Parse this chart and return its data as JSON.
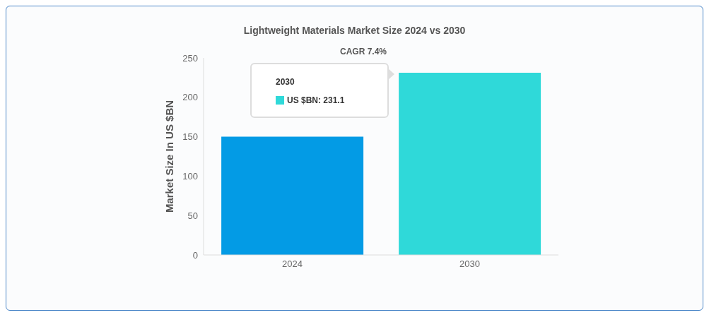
{
  "chart_data": {
    "type": "bar",
    "title": "Lightweight Materials Market Size 2024 vs 2030",
    "ylabel": "Market Size In US $BN",
    "categories": [
      "2024",
      "2030"
    ],
    "values": [
      150,
      231.1
    ],
    "colors": [
      "#039be5",
      "#2fd9d9"
    ],
    "ylim": [
      0,
      250
    ],
    "yticks": [
      0,
      50,
      100,
      150,
      200,
      250
    ],
    "grid": false,
    "annotations": [
      "CAGR 7.4%",
      "2030",
      "US $BN: 231.1"
    ]
  }
}
